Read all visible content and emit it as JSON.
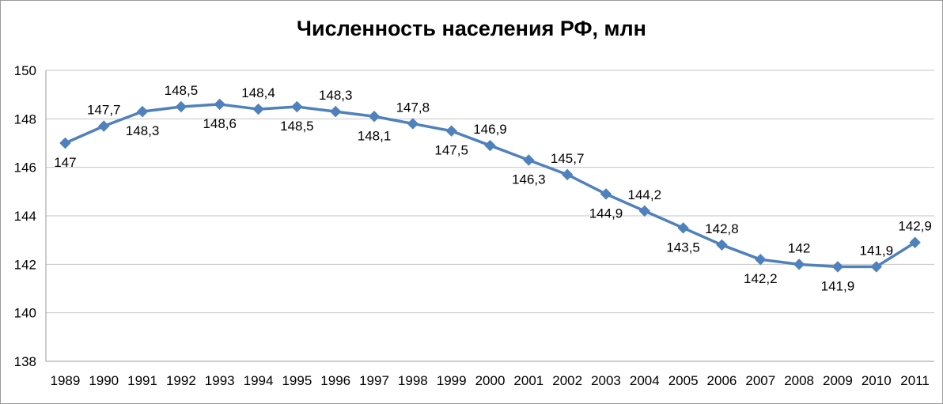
{
  "chart_data": {
    "type": "line",
    "title": "Численность населения РФ, млн",
    "categories": [
      "1989",
      "1990",
      "1991",
      "1992",
      "1993",
      "1994",
      "1995",
      "1996",
      "1997",
      "1998",
      "1999",
      "2000",
      "2001",
      "2002",
      "2003",
      "2004",
      "2005",
      "2006",
      "2007",
      "2008",
      "2009",
      "2010",
      "2011"
    ],
    "values": [
      147,
      147.7,
      148.3,
      148.5,
      148.6,
      148.4,
      148.5,
      148.3,
      148.1,
      147.8,
      147.5,
      146.9,
      146.3,
      145.7,
      144.9,
      144.2,
      143.5,
      142.8,
      142.2,
      142,
      141.9,
      141.9,
      142.9
    ],
    "point_labels": [
      "147",
      "147,7",
      "148,3",
      "148,5",
      "148,6",
      "148,4",
      "148,5",
      "148,3",
      "148,1",
      "147,8",
      "147,5",
      "146,9",
      "146,3",
      "145,7",
      "144,9",
      "144,2",
      "143,5",
      "142,8",
      "142,2",
      "142",
      "141,9",
      "141,9",
      "142,9"
    ],
    "label_positions": [
      "below",
      "above",
      "below",
      "above",
      "below",
      "above",
      "below",
      "above",
      "below",
      "above",
      "below",
      "above",
      "below",
      "above",
      "below",
      "above",
      "below",
      "above",
      "below",
      "above",
      "below",
      "above",
      "above"
    ],
    "ylim": [
      138,
      150
    ],
    "ytick_step": 2,
    "yticks": [
      "138",
      "140",
      "142",
      "144",
      "146",
      "148",
      "150"
    ],
    "grid": "horizontal",
    "legend_position": "none",
    "marker": "diamond",
    "colors": {
      "line": "#4F81BD",
      "marker": "#4F81BD",
      "grid": "#c6c6c6",
      "axis": "#9a9a9a",
      "text": "#000000",
      "background": "#ffffff",
      "frame_border": "#9a9a9a"
    }
  }
}
